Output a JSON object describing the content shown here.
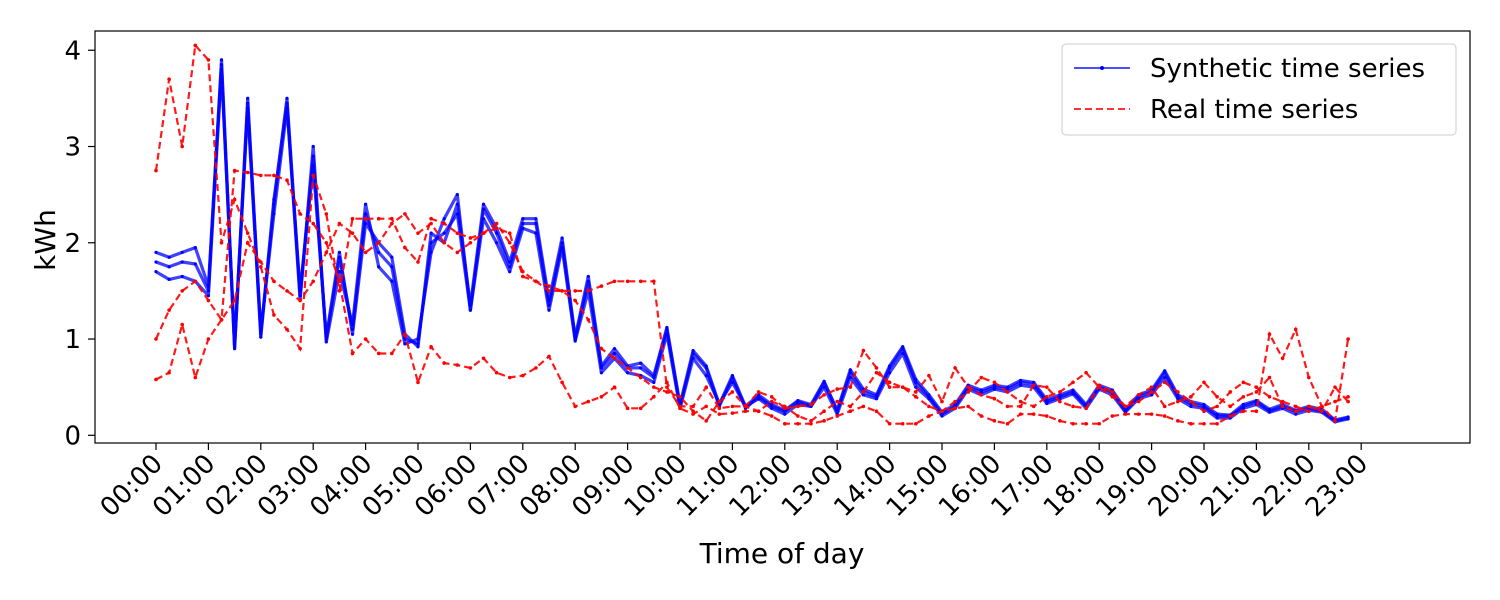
{
  "chart_data": {
    "type": "line",
    "title": "",
    "xlabel": "Time of day",
    "ylabel": "kWh",
    "ylim": [
      -0.08,
      4.2
    ],
    "yticks": [
      0,
      1,
      2,
      3,
      4
    ],
    "n_points": 96,
    "xticks": [
      "00:00",
      "01:00",
      "02:00",
      "03:00",
      "04:00",
      "05:00",
      "06:00",
      "07:00",
      "08:00",
      "09:00",
      "10:00",
      "11:00",
      "12:00",
      "13:00",
      "14:00",
      "15:00",
      "16:00",
      "17:00",
      "18:00",
      "19:00",
      "20:00",
      "21:00",
      "22:00",
      "23:00"
    ],
    "grid": false,
    "legend_position": "top-right",
    "legend": [
      {
        "label": "Synthetic time series",
        "color": "#0000ff",
        "style": "solid"
      },
      {
        "label": "Real time series",
        "color": "#ff0000",
        "style": "dashed"
      }
    ],
    "series": [
      {
        "group": "synthetic",
        "color": "#0000ff",
        "values": [
          1.8,
          1.75,
          1.8,
          1.78,
          1.5,
          3.9,
          0.9,
          3.5,
          1.05,
          2.4,
          3.5,
          1.45,
          2.9,
          1.0,
          1.85,
          1.1,
          2.3,
          1.9,
          1.75,
          1.0,
          0.95,
          2.0,
          2.1,
          2.3,
          1.3,
          2.35,
          2.1,
          1.75,
          2.2,
          2.2,
          1.35,
          2.0,
          1.0,
          1.6,
          0.7,
          0.85,
          0.7,
          0.7,
          0.6,
          1.1,
          0.3,
          0.85,
          0.7,
          0.3,
          0.6,
          0.28,
          0.4,
          0.3,
          0.25,
          0.35,
          0.3,
          0.55,
          0.25,
          0.65,
          0.45,
          0.4,
          0.7,
          0.9,
          0.55,
          0.4,
          0.22,
          0.3,
          0.5,
          0.45,
          0.5,
          0.48,
          0.55,
          0.53,
          0.35,
          0.4,
          0.45,
          0.3,
          0.5,
          0.45,
          0.25,
          0.4,
          0.45,
          0.65,
          0.4,
          0.33,
          0.3,
          0.2,
          0.2,
          0.3,
          0.35,
          0.25,
          0.3,
          0.25,
          0.28,
          0.25,
          0.15,
          0.18
        ]
      },
      {
        "group": "synthetic",
        "color": "#0000ff",
        "values": [
          1.7,
          1.62,
          1.65,
          1.6,
          1.45,
          3.8,
          0.92,
          3.4,
          1.02,
          2.45,
          3.45,
          1.4,
          3.0,
          0.97,
          1.7,
          1.15,
          2.4,
          1.75,
          1.6,
          0.95,
          1.0,
          1.9,
          2.25,
          2.5,
          1.3,
          2.25,
          2.0,
          1.7,
          2.15,
          2.1,
          1.3,
          1.95,
          0.98,
          1.5,
          0.65,
          0.8,
          0.65,
          0.62,
          0.55,
          1.05,
          0.28,
          0.8,
          0.62,
          0.33,
          0.55,
          0.3,
          0.38,
          0.28,
          0.22,
          0.32,
          0.3,
          0.5,
          0.22,
          0.6,
          0.42,
          0.38,
          0.65,
          0.85,
          0.5,
          0.38,
          0.2,
          0.28,
          0.48,
          0.42,
          0.48,
          0.45,
          0.52,
          0.5,
          0.33,
          0.38,
          0.43,
          0.28,
          0.48,
          0.42,
          0.24,
          0.38,
          0.42,
          0.6,
          0.38,
          0.3,
          0.28,
          0.18,
          0.18,
          0.28,
          0.32,
          0.24,
          0.28,
          0.22,
          0.26,
          0.24,
          0.14,
          0.17
        ]
      },
      {
        "group": "synthetic",
        "color": "#0000ff",
        "values": [
          1.9,
          1.85,
          1.9,
          1.95,
          1.55,
          3.85,
          0.95,
          3.45,
          1.08,
          2.3,
          3.4,
          1.5,
          2.8,
          1.02,
          1.9,
          1.05,
          2.2,
          2.0,
          1.85,
          1.05,
          0.92,
          2.1,
          2.0,
          2.4,
          1.35,
          2.4,
          2.15,
          1.8,
          2.25,
          2.25,
          1.4,
          2.05,
          1.02,
          1.65,
          0.72,
          0.9,
          0.72,
          0.75,
          0.62,
          1.12,
          0.32,
          0.88,
          0.72,
          0.32,
          0.62,
          0.3,
          0.42,
          0.32,
          0.26,
          0.36,
          0.32,
          0.56,
          0.26,
          0.68,
          0.48,
          0.42,
          0.72,
          0.92,
          0.58,
          0.42,
          0.24,
          0.32,
          0.52,
          0.47,
          0.52,
          0.5,
          0.57,
          0.55,
          0.37,
          0.42,
          0.47,
          0.32,
          0.52,
          0.47,
          0.27,
          0.42,
          0.47,
          0.67,
          0.42,
          0.35,
          0.32,
          0.22,
          0.21,
          0.32,
          0.36,
          0.27,
          0.32,
          0.26,
          0.3,
          0.27,
          0.16,
          0.19
        ]
      },
      {
        "group": "real",
        "color": "#ff0000",
        "values": [
          2.75,
          3.7,
          3.0,
          4.05,
          3.9,
          2.0,
          2.45,
          2.1,
          1.75,
          1.25,
          1.1,
          0.9,
          2.7,
          2.3,
          1.5,
          2.25,
          2.25,
          2.25,
          2.25,
          1.95,
          1.8,
          2.25,
          2.2,
          2.1,
          2.05,
          2.1,
          2.15,
          2.1,
          1.65,
          1.6,
          1.55,
          1.5,
          1.5,
          1.5,
          1.55,
          1.6,
          1.6,
          1.6,
          1.6,
          0.5,
          0.3,
          0.3,
          0.5,
          0.28,
          0.3,
          0.3,
          0.45,
          0.4,
          0.28,
          0.3,
          0.32,
          0.42,
          0.48,
          0.5,
          0.88,
          0.7,
          0.5,
          0.5,
          0.45,
          0.62,
          0.35,
          0.7,
          0.5,
          0.42,
          0.38,
          0.3,
          0.3,
          0.52,
          0.5,
          0.35,
          0.3,
          0.28,
          0.52,
          0.45,
          0.3,
          0.42,
          0.5,
          0.3,
          0.35,
          0.4,
          0.55,
          0.4,
          0.3,
          0.4,
          0.45,
          0.6,
          0.3,
          0.25,
          0.3,
          0.25,
          0.5,
          0.35
        ]
      },
      {
        "group": "real",
        "color": "#ff0000",
        "values": [
          0.58,
          0.65,
          1.15,
          0.6,
          1.0,
          1.2,
          2.75,
          2.73,
          2.7,
          2.7,
          2.65,
          2.3,
          2.2,
          2.0,
          1.6,
          0.85,
          1.0,
          0.85,
          0.85,
          1.05,
          0.55,
          0.92,
          0.75,
          0.73,
          0.7,
          0.8,
          0.65,
          0.6,
          0.62,
          0.7,
          0.82,
          0.55,
          0.3,
          0.35,
          0.4,
          0.5,
          0.28,
          0.28,
          0.4,
          0.55,
          0.28,
          0.22,
          0.3,
          0.22,
          0.23,
          0.25,
          0.25,
          0.2,
          0.12,
          0.12,
          0.12,
          0.15,
          0.2,
          0.25,
          0.3,
          0.25,
          0.12,
          0.12,
          0.12,
          0.2,
          0.25,
          0.28,
          0.3,
          0.2,
          0.15,
          0.12,
          0.22,
          0.22,
          0.2,
          0.15,
          0.12,
          0.12,
          0.12,
          0.2,
          0.22,
          0.22,
          0.22,
          0.2,
          0.15,
          0.12,
          0.12,
          0.12,
          0.2,
          0.25,
          0.25,
          1.05,
          0.8,
          1.1,
          0.6,
          0.3,
          0.15,
          1.0
        ]
      },
      {
        "group": "real",
        "color": "#ff0000",
        "values": [
          1.0,
          1.3,
          1.5,
          1.6,
          1.4,
          1.2,
          1.4,
          2.0,
          1.8,
          1.6,
          1.5,
          1.4,
          1.6,
          1.9,
          2.2,
          2.1,
          1.9,
          2.0,
          2.2,
          2.3,
          2.1,
          2.2,
          2.0,
          1.9,
          2.0,
          2.1,
          2.2,
          2.0,
          1.7,
          1.6,
          1.5,
          1.5,
          1.4,
          1.2,
          0.9,
          0.8,
          0.7,
          0.6,
          0.5,
          0.45,
          0.4,
          0.25,
          0.15,
          0.35,
          0.45,
          0.3,
          0.25,
          0.35,
          0.3,
          0.2,
          0.15,
          0.25,
          0.35,
          0.3,
          0.45,
          0.65,
          0.55,
          0.5,
          0.4,
          0.3,
          0.25,
          0.35,
          0.45,
          0.6,
          0.55,
          0.45,
          0.35,
          0.3,
          0.4,
          0.45,
          0.55,
          0.65,
          0.5,
          0.4,
          0.3,
          0.35,
          0.45,
          0.55,
          0.45,
          0.35,
          0.25,
          0.3,
          0.45,
          0.55,
          0.5,
          0.4,
          0.35,
          0.3,
          0.25,
          0.3,
          0.35,
          0.4
        ]
      }
    ]
  }
}
